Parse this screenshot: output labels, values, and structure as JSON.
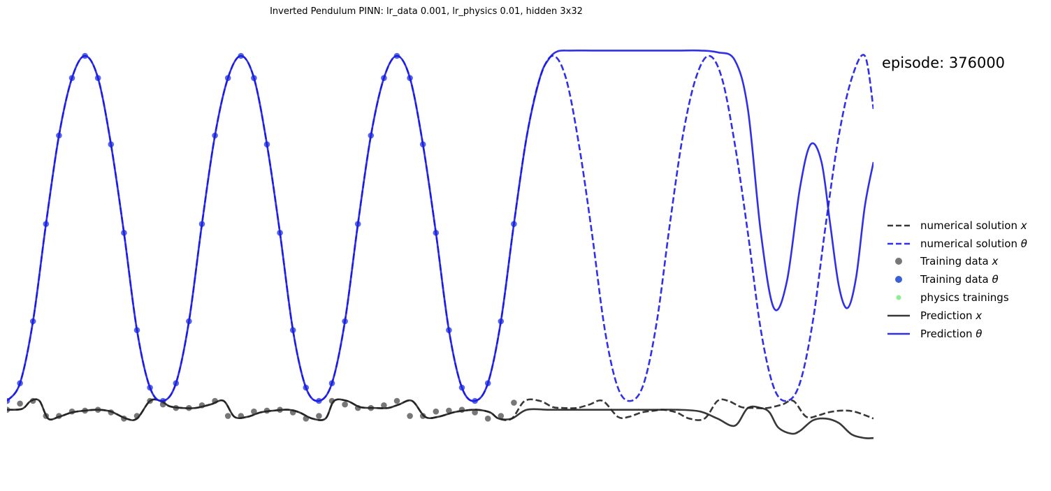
{
  "chart_data": {
    "type": "line",
    "title": "Inverted Pendulum PINN: lr_data 0.001, lr_physics 0.01, hidden 3x32",
    "annotation": "episode: 376000",
    "axes_visible": false,
    "grid": false,
    "legend_position": "right",
    "x_range": [
      0,
      20
    ],
    "y_range": [
      -0.5,
      4.0
    ],
    "colors": {
      "x_series": "#222222",
      "theta_series": "#1a1ae6",
      "x_points": "#555555",
      "theta_points": "#2b3fe0",
      "physics": "#90ee90"
    },
    "legend": [
      {
        "text": "numerical solution ",
        "symbol": "x",
        "style": "dashed",
        "color": "#222222"
      },
      {
        "text": "numerical solution ",
        "symbol": "θ",
        "style": "dashed",
        "color": "#1a1ae6"
      },
      {
        "text": "Training data ",
        "symbol": "x",
        "style": "dot",
        "color": "#777777"
      },
      {
        "text": "Training data ",
        "symbol": "θ",
        "style": "dot",
        "color": "#3a5fd9"
      },
      {
        "text": "physics trainings",
        "symbol": "",
        "style": "dot-small",
        "color": "#90ee90"
      },
      {
        "text": "Prediction ",
        "symbol": "x",
        "style": "solid",
        "color": "#222222"
      },
      {
        "text": "Prediction ",
        "symbol": "θ",
        "style": "solid",
        "color": "#1a1ae6"
      }
    ],
    "series": [
      {
        "name": "numerical solution x",
        "style": "dashed",
        "x": [
          0,
          0.35,
          0.55,
          0.75,
          0.95,
          1.2,
          1.5,
          1.8,
          2.1,
          2.4,
          2.75,
          3.0,
          3.3,
          3.55,
          3.75,
          4.05,
          4.35,
          4.7,
          5.0,
          5.25,
          5.55,
          5.85,
          6.15,
          6.5,
          6.75,
          7.05,
          7.35,
          7.55,
          7.85,
          8.15,
          8.5,
          8.8,
          9.05,
          9.35,
          9.65,
          9.95,
          10.3,
          10.55,
          10.85,
          11.15,
          11.35,
          11.65,
          11.95,
          12.3,
          12.6,
          12.85,
          13.15,
          13.45,
          13.75,
          14.1,
          14.35,
          14.65,
          14.95,
          15.15,
          15.45,
          15.75,
          16.1,
          16.4,
          16.65,
          16.95,
          17.25,
          17.55,
          17.9,
          18.15,
          18.45,
          18.75,
          18.95,
          19.25,
          19.55,
          19.9,
          20.0
        ],
        "y": [
          0.0,
          0.01,
          0.1,
          0.1,
          -0.1,
          -0.08,
          -0.03,
          -0.01,
          0.0,
          -0.02,
          -0.1,
          -0.1,
          0.1,
          0.1,
          0.04,
          0.02,
          0.02,
          0.06,
          0.1,
          -0.08,
          -0.08,
          -0.03,
          -0.01,
          0.0,
          -0.03,
          -0.1,
          -0.1,
          0.1,
          0.1,
          0.03,
          0.02,
          0.02,
          0.06,
          0.1,
          -0.08,
          -0.08,
          -0.03,
          -0.01,
          0.0,
          -0.03,
          -0.1,
          -0.1,
          0.1,
          0.1,
          0.03,
          0.02,
          0.02,
          0.06,
          0.1,
          -0.08,
          -0.08,
          -0.03,
          -0.01,
          0.0,
          -0.03,
          -0.1,
          -0.1,
          0.1,
          0.1,
          0.03,
          0.02,
          0.02,
          0.06,
          0.1,
          -0.08,
          -0.06,
          -0.03,
          -0.01,
          -0.02,
          -0.08,
          -0.1
        ]
      },
      {
        "name": "numerical solution θ",
        "style": "dashed",
        "x": [
          0,
          0.3,
          0.6,
          0.9,
          1.2,
          1.5,
          1.8,
          2.1,
          2.4,
          2.7,
          3.0,
          3.3,
          3.6,
          3.9,
          4.2,
          4.5,
          4.8,
          5.1,
          5.4,
          5.7,
          6.0,
          6.3,
          6.6,
          6.9,
          7.2,
          7.5,
          7.8,
          8.1,
          8.4,
          8.7,
          9.0,
          9.3,
          9.6,
          9.9,
          10.2,
          10.5,
          10.8,
          11.1,
          11.4,
          11.7,
          12.0,
          12.3,
          12.6,
          12.9,
          13.2,
          13.5,
          13.8,
          14.1,
          14.4,
          14.7,
          15.0,
          15.3,
          15.6,
          15.9,
          16.2,
          16.5,
          16.8,
          17.1,
          17.4,
          17.7,
          18.0,
          18.3,
          18.6,
          18.9,
          19.2,
          19.5,
          19.8,
          20.0
        ],
        "y": [
          0.1,
          0.3,
          1.0,
          2.1,
          3.1,
          3.75,
          4.0,
          3.75,
          3.0,
          2.0,
          0.9,
          0.25,
          0.1,
          0.3,
          1.0,
          2.1,
          3.1,
          3.75,
          4.0,
          3.75,
          3.0,
          2.0,
          0.9,
          0.25,
          0.1,
          0.3,
          1.0,
          2.1,
          3.1,
          3.75,
          4.0,
          3.75,
          3.0,
          2.0,
          0.9,
          0.25,
          0.1,
          0.3,
          1.0,
          2.1,
          3.1,
          3.75,
          4.0,
          3.75,
          3.0,
          2.0,
          0.9,
          0.25,
          0.1,
          0.3,
          1.0,
          2.1,
          3.1,
          3.75,
          4.0,
          3.75,
          3.0,
          2.0,
          0.9,
          0.25,
          0.1,
          0.3,
          1.0,
          2.1,
          3.1,
          3.75,
          4.0,
          3.4
        ]
      },
      {
        "name": "Prediction x",
        "style": "solid",
        "x": [
          0,
          0.35,
          0.55,
          0.75,
          0.95,
          1.2,
          1.5,
          1.8,
          2.1,
          2.4,
          2.75,
          3.0,
          3.3,
          3.55,
          3.75,
          4.05,
          4.35,
          4.7,
          5.0,
          5.25,
          5.55,
          5.85,
          6.15,
          6.5,
          6.75,
          7.05,
          7.35,
          7.55,
          7.85,
          8.15,
          8.5,
          8.8,
          9.05,
          9.35,
          9.65,
          9.95,
          10.3,
          10.55,
          10.85,
          11.15,
          11.35,
          11.65,
          12.0,
          12.5,
          13.0,
          13.5,
          14.0,
          14.5,
          15.0,
          15.5,
          16.0,
          16.4,
          16.8,
          17.1,
          17.4,
          17.6,
          17.8,
          18.1,
          18.3,
          18.6,
          18.9,
          19.2,
          19.5,
          19.8,
          20.0
        ],
        "y": [
          0.0,
          0.01,
          0.1,
          0.1,
          -0.1,
          -0.08,
          -0.03,
          -0.01,
          0.0,
          -0.02,
          -0.1,
          -0.1,
          0.1,
          0.1,
          0.04,
          0.02,
          0.02,
          0.06,
          0.1,
          -0.08,
          -0.08,
          -0.03,
          -0.01,
          0.0,
          -0.03,
          -0.1,
          -0.1,
          0.1,
          0.1,
          0.03,
          0.02,
          0.02,
          0.06,
          0.1,
          -0.08,
          -0.08,
          -0.03,
          -0.01,
          0.0,
          -0.03,
          -0.1,
          -0.1,
          0.0,
          0.0,
          0.0,
          0.0,
          0.0,
          0.0,
          0.0,
          0.0,
          -0.02,
          -0.1,
          -0.18,
          0.02,
          0.02,
          -0.03,
          -0.2,
          -0.27,
          -0.24,
          -0.12,
          -0.1,
          -0.15,
          -0.28,
          -0.32,
          -0.32
        ]
      },
      {
        "name": "Prediction θ",
        "style": "solid",
        "x": [
          0,
          0.3,
          0.6,
          0.9,
          1.2,
          1.5,
          1.8,
          2.1,
          2.4,
          2.7,
          3.0,
          3.3,
          3.6,
          3.9,
          4.2,
          4.5,
          4.8,
          5.1,
          5.4,
          5.7,
          6.0,
          6.3,
          6.6,
          6.9,
          7.2,
          7.5,
          7.8,
          8.1,
          8.4,
          8.7,
          9.0,
          9.3,
          9.6,
          9.9,
          10.2,
          10.5,
          10.8,
          11.1,
          11.4,
          11.7,
          12.0,
          12.3,
          12.5,
          12.7,
          13.0,
          13.5,
          14.0,
          14.5,
          15.0,
          15.5,
          16.0,
          16.4,
          16.8,
          17.1,
          17.4,
          17.7,
          18.0,
          18.3,
          18.55,
          18.8,
          19.0,
          19.2,
          19.4,
          19.6,
          19.8,
          20.0
        ],
        "y": [
          0.1,
          0.3,
          1.0,
          2.1,
          3.1,
          3.75,
          4.0,
          3.75,
          3.0,
          2.0,
          0.9,
          0.25,
          0.1,
          0.3,
          1.0,
          2.1,
          3.1,
          3.75,
          4.0,
          3.75,
          3.0,
          2.0,
          0.9,
          0.25,
          0.1,
          0.3,
          1.0,
          2.1,
          3.1,
          3.75,
          4.0,
          3.75,
          3.0,
          2.0,
          0.9,
          0.25,
          0.1,
          0.3,
          1.0,
          2.1,
          3.1,
          3.75,
          3.96,
          4.05,
          4.06,
          4.06,
          4.06,
          4.06,
          4.06,
          4.06,
          4.06,
          4.04,
          3.95,
          3.4,
          2.0,
          1.15,
          1.45,
          2.5,
          3.0,
          2.8,
          2.1,
          1.4,
          1.15,
          1.5,
          2.3,
          2.8
        ]
      }
    ],
    "training_data_x": {
      "x": [
        0.0,
        0.3,
        0.6,
        0.9,
        1.2,
        1.5,
        1.8,
        2.1,
        2.4,
        2.7,
        3.0,
        3.3,
        3.6,
        3.9,
        4.2,
        4.5,
        4.8,
        5.1,
        5.4,
        5.7,
        6.0,
        6.3,
        6.6,
        6.9,
        7.2,
        7.5,
        7.8,
        8.1,
        8.4,
        8.7,
        9.0,
        9.3,
        9.6,
        9.9,
        10.2,
        10.5,
        10.8,
        11.1,
        11.4,
        11.7
      ],
      "y": [
        0.0,
        0.07,
        0.1,
        -0.07,
        -0.07,
        -0.02,
        -0.01,
        0.0,
        -0.03,
        -0.1,
        -0.07,
        0.1,
        0.06,
        0.02,
        0.02,
        0.05,
        0.1,
        -0.07,
        -0.07,
        -0.02,
        -0.01,
        0.0,
        -0.03,
        -0.1,
        -0.07,
        0.1,
        0.06,
        0.02,
        0.02,
        0.05,
        0.1,
        -0.07,
        -0.07,
        -0.02,
        -0.01,
        0.0,
        -0.03,
        -0.1,
        -0.07,
        0.08
      ]
    },
    "training_data_theta": {
      "x": [
        0.0,
        0.3,
        0.6,
        0.9,
        1.2,
        1.5,
        1.8,
        2.1,
        2.4,
        2.7,
        3.0,
        3.3,
        3.6,
        3.9,
        4.2,
        4.5,
        4.8,
        5.1,
        5.4,
        5.7,
        6.0,
        6.3,
        6.6,
        6.9,
        7.2,
        7.5,
        7.8,
        8.1,
        8.4,
        8.7,
        9.0,
        9.3,
        9.6,
        9.9,
        10.2,
        10.5,
        10.8,
        11.1,
        11.4,
        11.7
      ],
      "y": [
        0.1,
        0.3,
        1.0,
        2.1,
        3.1,
        3.75,
        4.0,
        3.75,
        3.0,
        2.0,
        0.9,
        0.25,
        0.1,
        0.3,
        1.0,
        2.1,
        3.1,
        3.75,
        4.0,
        3.75,
        3.0,
        2.0,
        0.9,
        0.25,
        0.1,
        0.3,
        1.0,
        2.1,
        3.1,
        3.75,
        4.0,
        3.75,
        3.0,
        2.0,
        0.9,
        0.25,
        0.1,
        0.3,
        1.0,
        2.1
      ]
    },
    "physics_trainings": {
      "x": [],
      "y": []
    }
  }
}
